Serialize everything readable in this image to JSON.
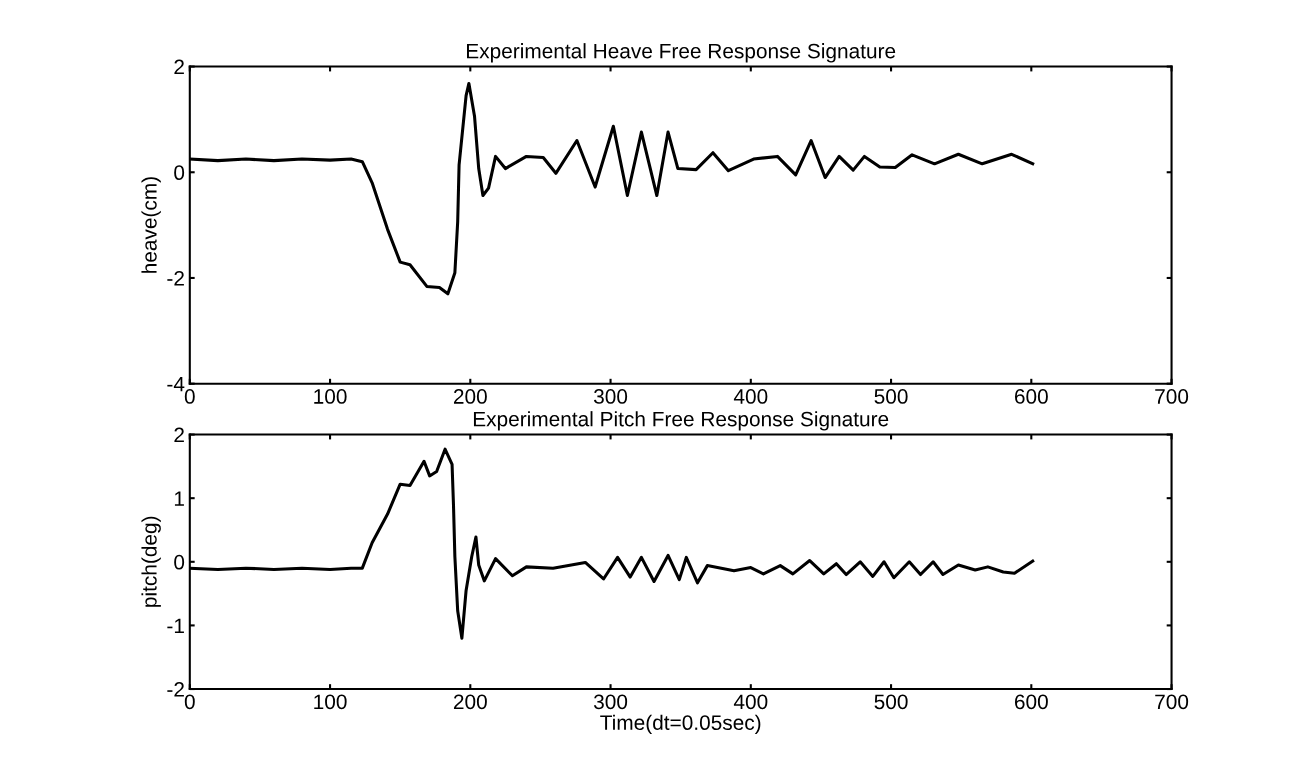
{
  "chart_data": [
    {
      "type": "line",
      "title": "Experimental Heave Free Response Signature",
      "ylabel": "heave(cm)",
      "xlim": [
        0,
        700
      ],
      "xticks": [
        0,
        100,
        200,
        300,
        400,
        500,
        600,
        700
      ],
      "ylim": [
        -4,
        2
      ],
      "yticks": [
        -4,
        -2,
        0,
        2
      ],
      "grid": false,
      "legend": false,
      "series": [
        {
          "color": "#000000",
          "x": [
            0,
            20,
            40,
            60,
            80,
            100,
            115,
            123,
            130,
            141,
            150,
            157,
            169,
            178,
            184,
            189,
            191,
            192,
            197,
            199,
            203,
            206,
            209,
            213,
            218,
            225,
            240,
            252,
            261,
            276,
            289,
            302,
            312,
            322,
            333,
            341,
            348,
            361,
            373,
            384,
            402,
            419,
            432,
            443,
            453,
            463,
            473,
            481,
            492,
            503,
            515,
            531,
            548,
            565,
            586,
            601
          ],
          "values": [
            0.25,
            0.22,
            0.25,
            0.22,
            0.25,
            0.23,
            0.25,
            0.2,
            -0.2,
            -1.08,
            -1.7,
            -1.75,
            -2.16,
            -2.18,
            -2.3,
            -1.9,
            -0.94,
            0.14,
            1.45,
            1.68,
            1.06,
            0.07,
            -0.44,
            -0.3,
            0.3,
            0.07,
            0.3,
            0.28,
            -0.02,
            0.6,
            -0.28,
            0.87,
            -0.44,
            0.76,
            -0.44,
            0.76,
            0.07,
            0.05,
            0.37,
            0.03,
            0.25,
            0.3,
            -0.05,
            0.6,
            -0.1,
            0.3,
            0.04,
            0.3,
            0.1,
            0.09,
            0.33,
            0.16,
            0.34,
            0.16,
            0.34,
            0.16
          ]
        }
      ]
    },
    {
      "type": "line",
      "title": "Experimental Pitch Free Response Signature",
      "xlabel": "Time(dt=0.05sec)",
      "ylabel": "pitch(deg)",
      "xlim": [
        0,
        700
      ],
      "xticks": [
        0,
        100,
        200,
        300,
        400,
        500,
        600,
        700
      ],
      "ylim": [
        -2,
        2
      ],
      "yticks": [
        -2,
        -1,
        0,
        1,
        2
      ],
      "grid": false,
      "legend": false,
      "series": [
        {
          "color": "#000000",
          "x": [
            0,
            20,
            40,
            60,
            80,
            100,
            115,
            123,
            130,
            141,
            150,
            157,
            167,
            171,
            176,
            182,
            187,
            188,
            189,
            191,
            194,
            197,
            201,
            204,
            206,
            210,
            218,
            230,
            240,
            259,
            282,
            295,
            305,
            314,
            322,
            331,
            341,
            349,
            354,
            362,
            369,
            388,
            400,
            409,
            421,
            430,
            442,
            452,
            461,
            468,
            478,
            487,
            495,
            502,
            513,
            521,
            530,
            537,
            548,
            560,
            569,
            580,
            588,
            601
          ],
          "values": [
            -0.1,
            -0.12,
            -0.1,
            -0.12,
            -0.1,
            -0.12,
            -0.1,
            -0.1,
            0.3,
            0.75,
            1.22,
            1.2,
            1.58,
            1.35,
            1.42,
            1.77,
            1.53,
            0.9,
            0.08,
            -0.77,
            -1.2,
            -0.45,
            0.08,
            0.39,
            -0.05,
            -0.3,
            0.05,
            -0.22,
            -0.08,
            -0.1,
            -0.01,
            -0.27,
            0.07,
            -0.24,
            0.07,
            -0.31,
            0.1,
            -0.28,
            0.07,
            -0.33,
            -0.06,
            -0.14,
            -0.09,
            -0.19,
            -0.06,
            -0.19,
            0.02,
            -0.19,
            -0.03,
            -0.2,
            0,
            -0.23,
            0,
            -0.25,
            0,
            -0.2,
            0,
            -0.2,
            -0.05,
            -0.13,
            -0.08,
            -0.16,
            -0.18,
            0.01
          ]
        }
      ]
    }
  ]
}
